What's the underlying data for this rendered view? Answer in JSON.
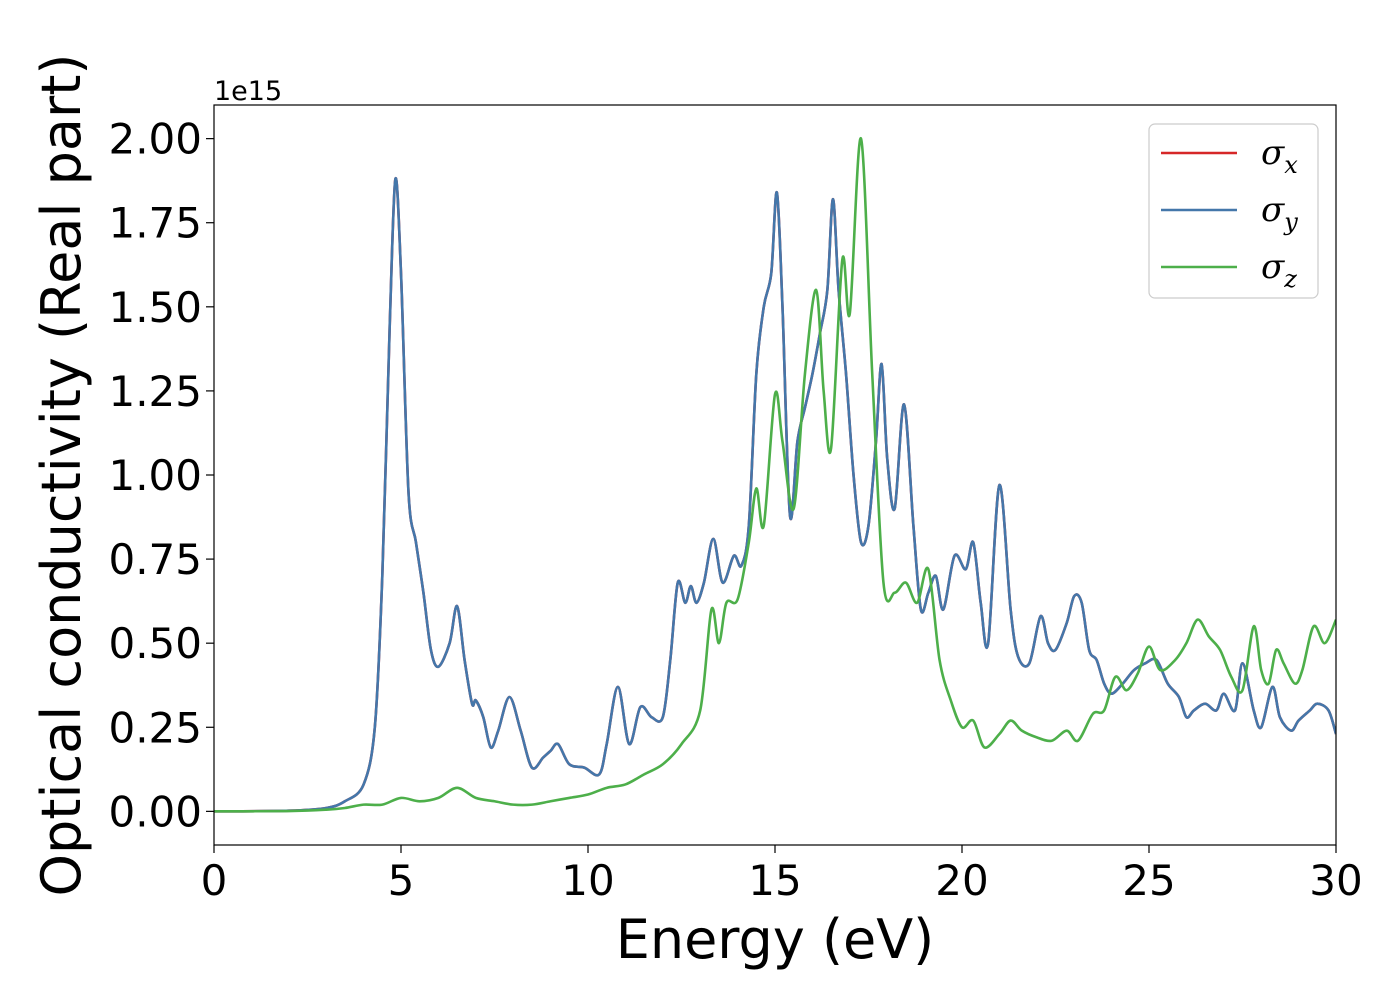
{
  "chart_data": {
    "type": "line",
    "xlabel": "Energy (eV)",
    "ylabel": "Optical conductivity (Real part)",
    "y_offset_text": "1e15",
    "y_scale_factor": 1000000000000000.0,
    "xlim": [
      0,
      30
    ],
    "ylim": [
      -0.1,
      2.1
    ],
    "x_ticks": [
      0,
      5,
      10,
      15,
      20,
      25,
      30
    ],
    "x_tick_labels": [
      "0",
      "5",
      "10",
      "15",
      "20",
      "25",
      "30"
    ],
    "y_ticks": [
      0,
      0.25,
      0.5,
      0.75,
      1.0,
      1.25,
      1.5,
      1.75,
      2.0
    ],
    "y_tick_labels": [
      "0.00",
      "0.25",
      "0.50",
      "0.75",
      "1.00",
      "1.25",
      "1.50",
      "1.75",
      "2.00"
    ],
    "grid": false,
    "legend_position": "top-right",
    "series": [
      {
        "name": "σx",
        "legend_symbol": "σ",
        "legend_subscript": "x",
        "color": "#d62728",
        "x": [
          0,
          2,
          3,
          3.5,
          4.0,
          4.3,
          4.5,
          4.7,
          4.85,
          5.0,
          5.2,
          5.4,
          5.6,
          5.8,
          6.0,
          6.3,
          6.5,
          6.7,
          6.9,
          7.0,
          7.2,
          7.4,
          7.6,
          7.9,
          8.2,
          8.5,
          8.8,
          9.0,
          9.2,
          9.5,
          9.9,
          10.3,
          10.5,
          10.8,
          11.1,
          11.4,
          11.7,
          12.0,
          12.2,
          12.4,
          12.6,
          12.75,
          12.9,
          13.1,
          13.35,
          13.6,
          13.9,
          14.1,
          14.3,
          14.5,
          14.7,
          14.9,
          15.05,
          15.2,
          15.4,
          15.6,
          15.8,
          16.0,
          16.2,
          16.4,
          16.55,
          16.7,
          16.9,
          17.1,
          17.3,
          17.5,
          17.7,
          17.85,
          18.0,
          18.2,
          18.45,
          18.7,
          18.9,
          19.1,
          19.3,
          19.5,
          19.8,
          20.1,
          20.3,
          20.5,
          20.7,
          21.0,
          21.3,
          21.5,
          21.8,
          22.1,
          22.3,
          22.5,
          22.8,
          23.0,
          23.2,
          23.4,
          23.6,
          23.8,
          24.0,
          24.3,
          24.6,
          24.9,
          25.2,
          25.5,
          25.8,
          26.0,
          26.2,
          26.5,
          26.8,
          27.0,
          27.3,
          27.5,
          27.8,
          28.0,
          28.3,
          28.5,
          28.8,
          29.0,
          29.3,
          29.5,
          29.8,
          30.0
        ],
        "y": [
          0,
          0.002,
          0.01,
          0.03,
          0.08,
          0.25,
          0.7,
          1.45,
          1.88,
          1.6,
          0.95,
          0.8,
          0.65,
          0.48,
          0.43,
          0.5,
          0.61,
          0.45,
          0.32,
          0.33,
          0.28,
          0.19,
          0.24,
          0.34,
          0.24,
          0.13,
          0.16,
          0.18,
          0.2,
          0.14,
          0.13,
          0.11,
          0.2,
          0.37,
          0.2,
          0.31,
          0.28,
          0.28,
          0.45,
          0.68,
          0.62,
          0.67,
          0.62,
          0.68,
          0.81,
          0.68,
          0.76,
          0.73,
          0.85,
          1.3,
          1.5,
          1.6,
          1.84,
          1.5,
          0.88,
          1.1,
          1.2,
          1.3,
          1.42,
          1.55,
          1.82,
          1.55,
          1.3,
          1.0,
          0.8,
          0.85,
          1.1,
          1.33,
          1.05,
          0.9,
          1.21,
          0.85,
          0.6,
          0.65,
          0.7,
          0.6,
          0.76,
          0.72,
          0.8,
          0.62,
          0.5,
          0.97,
          0.6,
          0.46,
          0.44,
          0.58,
          0.5,
          0.48,
          0.56,
          0.64,
          0.62,
          0.48,
          0.45,
          0.38,
          0.35,
          0.38,
          0.42,
          0.44,
          0.45,
          0.38,
          0.34,
          0.28,
          0.3,
          0.32,
          0.3,
          0.35,
          0.3,
          0.44,
          0.3,
          0.25,
          0.37,
          0.28,
          0.24,
          0.27,
          0.3,
          0.32,
          0.3,
          0.23
        ]
      },
      {
        "name": "σy",
        "legend_symbol": "σ",
        "legend_subscript": "y",
        "color": "#4477aa",
        "x": [
          0,
          2,
          3,
          3.5,
          4.0,
          4.3,
          4.5,
          4.7,
          4.85,
          5.0,
          5.2,
          5.4,
          5.6,
          5.8,
          6.0,
          6.3,
          6.5,
          6.7,
          6.9,
          7.0,
          7.2,
          7.4,
          7.6,
          7.9,
          8.2,
          8.5,
          8.8,
          9.0,
          9.2,
          9.5,
          9.9,
          10.3,
          10.5,
          10.8,
          11.1,
          11.4,
          11.7,
          12.0,
          12.2,
          12.4,
          12.6,
          12.75,
          12.9,
          13.1,
          13.35,
          13.6,
          13.9,
          14.1,
          14.3,
          14.5,
          14.7,
          14.9,
          15.05,
          15.2,
          15.4,
          15.6,
          15.8,
          16.0,
          16.2,
          16.4,
          16.55,
          16.7,
          16.9,
          17.1,
          17.3,
          17.5,
          17.7,
          17.85,
          18.0,
          18.2,
          18.45,
          18.7,
          18.9,
          19.1,
          19.3,
          19.5,
          19.8,
          20.1,
          20.3,
          20.5,
          20.7,
          21.0,
          21.3,
          21.5,
          21.8,
          22.1,
          22.3,
          22.5,
          22.8,
          23.0,
          23.2,
          23.4,
          23.6,
          23.8,
          24.0,
          24.3,
          24.6,
          24.9,
          25.2,
          25.5,
          25.8,
          26.0,
          26.2,
          26.5,
          26.8,
          27.0,
          27.3,
          27.5,
          27.8,
          28.0,
          28.3,
          28.5,
          28.8,
          29.0,
          29.3,
          29.5,
          29.8,
          30.0
        ],
        "y": [
          0,
          0.002,
          0.01,
          0.03,
          0.08,
          0.25,
          0.7,
          1.45,
          1.88,
          1.6,
          0.95,
          0.8,
          0.65,
          0.48,
          0.43,
          0.5,
          0.61,
          0.45,
          0.32,
          0.33,
          0.28,
          0.19,
          0.24,
          0.34,
          0.24,
          0.13,
          0.16,
          0.18,
          0.2,
          0.14,
          0.13,
          0.11,
          0.2,
          0.37,
          0.2,
          0.31,
          0.28,
          0.28,
          0.45,
          0.68,
          0.62,
          0.67,
          0.62,
          0.68,
          0.81,
          0.68,
          0.76,
          0.73,
          0.85,
          1.3,
          1.5,
          1.6,
          1.84,
          1.5,
          0.88,
          1.1,
          1.2,
          1.3,
          1.42,
          1.55,
          1.82,
          1.55,
          1.3,
          1.0,
          0.8,
          0.85,
          1.1,
          1.33,
          1.05,
          0.9,
          1.21,
          0.85,
          0.6,
          0.65,
          0.7,
          0.6,
          0.76,
          0.72,
          0.8,
          0.62,
          0.5,
          0.97,
          0.6,
          0.46,
          0.44,
          0.58,
          0.5,
          0.48,
          0.56,
          0.64,
          0.62,
          0.48,
          0.45,
          0.38,
          0.35,
          0.38,
          0.42,
          0.44,
          0.45,
          0.38,
          0.34,
          0.28,
          0.3,
          0.32,
          0.3,
          0.35,
          0.3,
          0.44,
          0.3,
          0.25,
          0.37,
          0.28,
          0.24,
          0.27,
          0.3,
          0.32,
          0.3,
          0.23
        ]
      },
      {
        "name": "σz",
        "legend_symbol": "σ",
        "legend_subscript": "z",
        "color": "#4daf4a",
        "x": [
          0,
          2,
          3,
          3.5,
          4.0,
          4.5,
          5.0,
          5.5,
          6.0,
          6.5,
          7.0,
          7.5,
          8.0,
          8.5,
          9.0,
          9.5,
          10.0,
          10.5,
          11.0,
          11.5,
          12.0,
          12.5,
          13.0,
          13.3,
          13.5,
          13.7,
          14.0,
          14.3,
          14.5,
          14.7,
          15.0,
          15.2,
          15.5,
          15.8,
          16.1,
          16.3,
          16.5,
          16.8,
          17.0,
          17.3,
          17.6,
          17.9,
          18.2,
          18.5,
          18.8,
          19.1,
          19.4,
          19.7,
          20.0,
          20.3,
          20.6,
          21.0,
          21.3,
          21.6,
          22.0,
          22.4,
          22.8,
          23.1,
          23.5,
          23.8,
          24.1,
          24.4,
          24.7,
          25.0,
          25.3,
          25.7,
          26.0,
          26.3,
          26.6,
          26.9,
          27.2,
          27.5,
          27.8,
          28.0,
          28.2,
          28.4,
          28.6,
          28.9,
          29.1,
          29.4,
          29.7,
          30.0
        ],
        "y": [
          0,
          0.001,
          0.005,
          0.01,
          0.02,
          0.02,
          0.04,
          0.03,
          0.04,
          0.07,
          0.04,
          0.03,
          0.02,
          0.02,
          0.03,
          0.04,
          0.05,
          0.07,
          0.08,
          0.11,
          0.14,
          0.2,
          0.3,
          0.6,
          0.5,
          0.62,
          0.63,
          0.8,
          0.96,
          0.85,
          1.24,
          1.1,
          0.9,
          1.3,
          1.55,
          1.25,
          1.08,
          1.64,
          1.48,
          2.0,
          1.3,
          0.68,
          0.65,
          0.68,
          0.62,
          0.72,
          0.45,
          0.33,
          0.25,
          0.27,
          0.19,
          0.23,
          0.27,
          0.24,
          0.22,
          0.21,
          0.24,
          0.21,
          0.29,
          0.3,
          0.4,
          0.36,
          0.41,
          0.49,
          0.42,
          0.45,
          0.5,
          0.57,
          0.52,
          0.48,
          0.4,
          0.36,
          0.55,
          0.42,
          0.38,
          0.48,
          0.44,
          0.38,
          0.42,
          0.55,
          0.5,
          0.57
        ]
      }
    ]
  }
}
